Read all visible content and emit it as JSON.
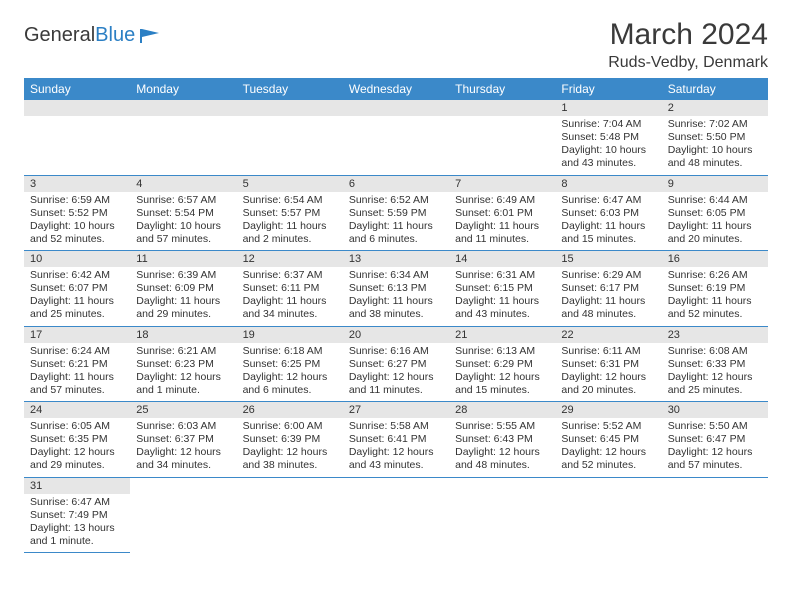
{
  "logo": {
    "text1": "General",
    "text2": "Blue"
  },
  "title": "March 2024",
  "location": "Ruds-Vedby, Denmark",
  "colors": {
    "header_bg": "#3b89c9",
    "header_fg": "#ffffff",
    "daynum_bg": "#e6e6e6",
    "border": "#3b89c9",
    "text": "#333333"
  },
  "weekdays": [
    "Sunday",
    "Monday",
    "Tuesday",
    "Wednesday",
    "Thursday",
    "Friday",
    "Saturday"
  ],
  "weeks": [
    [
      {
        "n": "",
        "sr": "",
        "ss": "",
        "dl": ""
      },
      {
        "n": "",
        "sr": "",
        "ss": "",
        "dl": ""
      },
      {
        "n": "",
        "sr": "",
        "ss": "",
        "dl": ""
      },
      {
        "n": "",
        "sr": "",
        "ss": "",
        "dl": ""
      },
      {
        "n": "",
        "sr": "",
        "ss": "",
        "dl": ""
      },
      {
        "n": "1",
        "sr": "Sunrise: 7:04 AM",
        "ss": "Sunset: 5:48 PM",
        "dl": "Daylight: 10 hours and 43 minutes."
      },
      {
        "n": "2",
        "sr": "Sunrise: 7:02 AM",
        "ss": "Sunset: 5:50 PM",
        "dl": "Daylight: 10 hours and 48 minutes."
      }
    ],
    [
      {
        "n": "3",
        "sr": "Sunrise: 6:59 AM",
        "ss": "Sunset: 5:52 PM",
        "dl": "Daylight: 10 hours and 52 minutes."
      },
      {
        "n": "4",
        "sr": "Sunrise: 6:57 AM",
        "ss": "Sunset: 5:54 PM",
        "dl": "Daylight: 10 hours and 57 minutes."
      },
      {
        "n": "5",
        "sr": "Sunrise: 6:54 AM",
        "ss": "Sunset: 5:57 PM",
        "dl": "Daylight: 11 hours and 2 minutes."
      },
      {
        "n": "6",
        "sr": "Sunrise: 6:52 AM",
        "ss": "Sunset: 5:59 PM",
        "dl": "Daylight: 11 hours and 6 minutes."
      },
      {
        "n": "7",
        "sr": "Sunrise: 6:49 AM",
        "ss": "Sunset: 6:01 PM",
        "dl": "Daylight: 11 hours and 11 minutes."
      },
      {
        "n": "8",
        "sr": "Sunrise: 6:47 AM",
        "ss": "Sunset: 6:03 PM",
        "dl": "Daylight: 11 hours and 15 minutes."
      },
      {
        "n": "9",
        "sr": "Sunrise: 6:44 AM",
        "ss": "Sunset: 6:05 PM",
        "dl": "Daylight: 11 hours and 20 minutes."
      }
    ],
    [
      {
        "n": "10",
        "sr": "Sunrise: 6:42 AM",
        "ss": "Sunset: 6:07 PM",
        "dl": "Daylight: 11 hours and 25 minutes."
      },
      {
        "n": "11",
        "sr": "Sunrise: 6:39 AM",
        "ss": "Sunset: 6:09 PM",
        "dl": "Daylight: 11 hours and 29 minutes."
      },
      {
        "n": "12",
        "sr": "Sunrise: 6:37 AM",
        "ss": "Sunset: 6:11 PM",
        "dl": "Daylight: 11 hours and 34 minutes."
      },
      {
        "n": "13",
        "sr": "Sunrise: 6:34 AM",
        "ss": "Sunset: 6:13 PM",
        "dl": "Daylight: 11 hours and 38 minutes."
      },
      {
        "n": "14",
        "sr": "Sunrise: 6:31 AM",
        "ss": "Sunset: 6:15 PM",
        "dl": "Daylight: 11 hours and 43 minutes."
      },
      {
        "n": "15",
        "sr": "Sunrise: 6:29 AM",
        "ss": "Sunset: 6:17 PM",
        "dl": "Daylight: 11 hours and 48 minutes."
      },
      {
        "n": "16",
        "sr": "Sunrise: 6:26 AM",
        "ss": "Sunset: 6:19 PM",
        "dl": "Daylight: 11 hours and 52 minutes."
      }
    ],
    [
      {
        "n": "17",
        "sr": "Sunrise: 6:24 AM",
        "ss": "Sunset: 6:21 PM",
        "dl": "Daylight: 11 hours and 57 minutes."
      },
      {
        "n": "18",
        "sr": "Sunrise: 6:21 AM",
        "ss": "Sunset: 6:23 PM",
        "dl": "Daylight: 12 hours and 1 minute."
      },
      {
        "n": "19",
        "sr": "Sunrise: 6:18 AM",
        "ss": "Sunset: 6:25 PM",
        "dl": "Daylight: 12 hours and 6 minutes."
      },
      {
        "n": "20",
        "sr": "Sunrise: 6:16 AM",
        "ss": "Sunset: 6:27 PM",
        "dl": "Daylight: 12 hours and 11 minutes."
      },
      {
        "n": "21",
        "sr": "Sunrise: 6:13 AM",
        "ss": "Sunset: 6:29 PM",
        "dl": "Daylight: 12 hours and 15 minutes."
      },
      {
        "n": "22",
        "sr": "Sunrise: 6:11 AM",
        "ss": "Sunset: 6:31 PM",
        "dl": "Daylight: 12 hours and 20 minutes."
      },
      {
        "n": "23",
        "sr": "Sunrise: 6:08 AM",
        "ss": "Sunset: 6:33 PM",
        "dl": "Daylight: 12 hours and 25 minutes."
      }
    ],
    [
      {
        "n": "24",
        "sr": "Sunrise: 6:05 AM",
        "ss": "Sunset: 6:35 PM",
        "dl": "Daylight: 12 hours and 29 minutes."
      },
      {
        "n": "25",
        "sr": "Sunrise: 6:03 AM",
        "ss": "Sunset: 6:37 PM",
        "dl": "Daylight: 12 hours and 34 minutes."
      },
      {
        "n": "26",
        "sr": "Sunrise: 6:00 AM",
        "ss": "Sunset: 6:39 PM",
        "dl": "Daylight: 12 hours and 38 minutes."
      },
      {
        "n": "27",
        "sr": "Sunrise: 5:58 AM",
        "ss": "Sunset: 6:41 PM",
        "dl": "Daylight: 12 hours and 43 minutes."
      },
      {
        "n": "28",
        "sr": "Sunrise: 5:55 AM",
        "ss": "Sunset: 6:43 PM",
        "dl": "Daylight: 12 hours and 48 minutes."
      },
      {
        "n": "29",
        "sr": "Sunrise: 5:52 AM",
        "ss": "Sunset: 6:45 PM",
        "dl": "Daylight: 12 hours and 52 minutes."
      },
      {
        "n": "30",
        "sr": "Sunrise: 5:50 AM",
        "ss": "Sunset: 6:47 PM",
        "dl": "Daylight: 12 hours and 57 minutes."
      }
    ],
    [
      {
        "n": "31",
        "sr": "Sunrise: 6:47 AM",
        "ss": "Sunset: 7:49 PM",
        "dl": "Daylight: 13 hours and 1 minute."
      },
      {
        "n": "",
        "sr": "",
        "ss": "",
        "dl": ""
      },
      {
        "n": "",
        "sr": "",
        "ss": "",
        "dl": ""
      },
      {
        "n": "",
        "sr": "",
        "ss": "",
        "dl": ""
      },
      {
        "n": "",
        "sr": "",
        "ss": "",
        "dl": ""
      },
      {
        "n": "",
        "sr": "",
        "ss": "",
        "dl": ""
      },
      {
        "n": "",
        "sr": "",
        "ss": "",
        "dl": ""
      }
    ]
  ]
}
